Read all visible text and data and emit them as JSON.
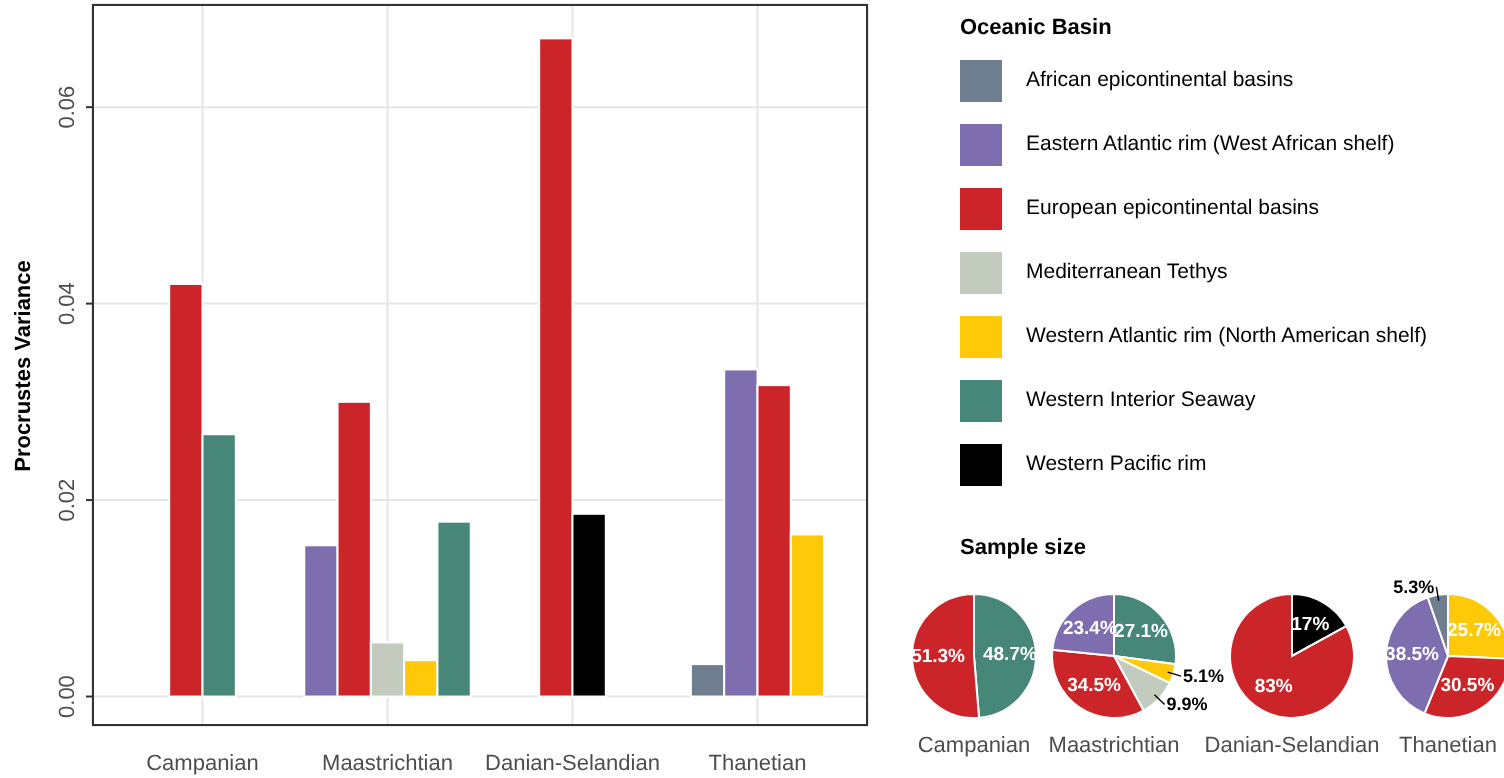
{
  "chart_data": [
    {
      "type": "bar",
      "ylabel": "Procrustes Variance",
      "legend_title": "Oceanic Basin",
      "legend": "right",
      "grid": true,
      "categories": [
        "Campanian",
        "Maastrichtian",
        "Danian-Selandian",
        "Thanetian"
      ],
      "ylim": [
        -0.003,
        0.0705
      ],
      "yticks": [
        {
          "value": 0,
          "label": "0.00"
        },
        0.02,
        0.04,
        0.06
      ],
      "series": [
        {
          "name": "African epicontinental basins",
          "color": "#6f7f8f",
          "values": [
            null,
            null,
            null,
            0.0033
          ]
        },
        {
          "name": "Eastern Atlantic rim (West African shelf)",
          "color": "#7e6eb0",
          "values": [
            null,
            0.0154,
            null,
            0.0333
          ]
        },
        {
          "name": "European epicontinental basins",
          "color": "#cc2529",
          "values": [
            0.042,
            0.03,
            0.067,
            0.0317
          ]
        },
        {
          "name": "Mediterranean Tethys",
          "color": "#c3cbbf",
          "values": [
            null,
            0.0055,
            null,
            null
          ]
        },
        {
          "name": "Western Atlantic rim (North American shelf)",
          "color": "#fec909",
          "values": [
            null,
            0.0037,
            null,
            0.0165
          ]
        },
        {
          "name": "Western Interior Seaway",
          "color": "#46877a",
          "values": [
            0.0267,
            0.0178,
            null,
            null
          ]
        },
        {
          "name": "Western Pacific rim",
          "color": "#000000",
          "values": [
            null,
            null,
            0.0186,
            null
          ]
        }
      ]
    },
    {
      "type": "pie",
      "title": "Sample size",
      "xlabel": "Campanian",
      "categories": [
        null,
        null
      ],
      "values": [
        48.7,
        51.3
      ],
      "colors": [
        "#46877a",
        "#cc2529"
      ],
      "value_labels": [
        "48.7%",
        "51.3%"
      ]
    },
    {
      "type": "pie",
      "xlabel": "Maastrichtian",
      "categories": [
        null,
        null,
        null,
        null,
        null
      ],
      "values": [
        27.1,
        5.1,
        9.9,
        34.5,
        23.4
      ],
      "colors": [
        "#46877a",
        "#fec909",
        "#c3cbbf",
        "#cc2529",
        "#7e6eb0"
      ],
      "value_labels": [
        "27.1%",
        "5.1%",
        "9.9%",
        "34.5%",
        "23.4%"
      ]
    },
    {
      "type": "pie",
      "xlabel": "Danian-Selandian",
      "categories": [
        null,
        null
      ],
      "values": [
        17,
        83
      ],
      "colors": [
        "#000000",
        "#cc2529"
      ],
      "value_labels": [
        "17%",
        "83%"
      ]
    },
    {
      "type": "pie",
      "xlabel": "Thanetian",
      "categories": [
        null,
        null,
        null,
        null
      ],
      "values": [
        25.7,
        30.5,
        38.5,
        5.3
      ],
      "colors": [
        "#fec909",
        "#cc2529",
        "#7e6eb0",
        "#6f7f8f"
      ],
      "value_labels": [
        "25.7%",
        "30.5%",
        "38.5%",
        "5.3%"
      ]
    }
  ]
}
